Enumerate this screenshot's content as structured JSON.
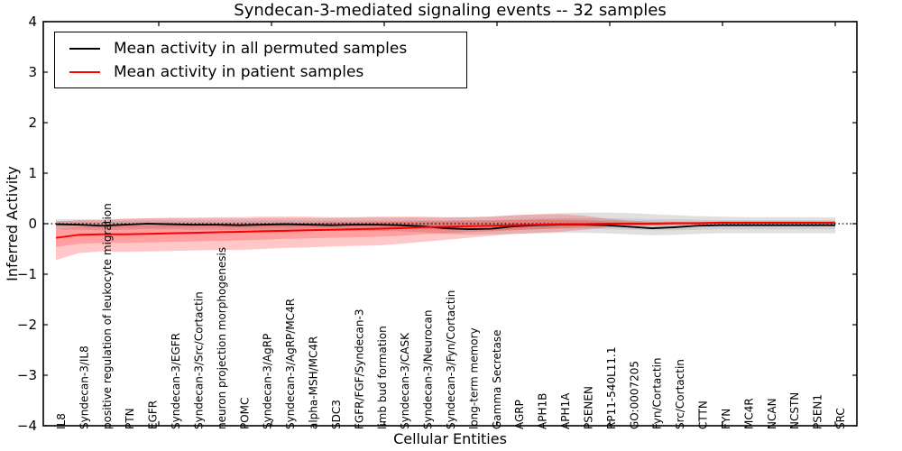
{
  "chart_data": {
    "type": "line",
    "title": "Syndecan-3-mediated signaling events -- 32 samples",
    "xlabel": "Cellular Entities",
    "ylabel": "Inferred Activity",
    "ylim": [
      -4,
      4
    ],
    "yticks": [
      4,
      3,
      2,
      1,
      0,
      -1,
      -2,
      -3,
      -4
    ],
    "zero_reference_line": {
      "y": 0,
      "style": "dotted",
      "color": "#000000"
    },
    "legend_position": "upper left",
    "grid": false,
    "categories": [
      "IL8",
      "Syndecan-3/IL8",
      "positive regulation of leukocyte migration",
      "PTN",
      "EGFR",
      "Syndecan-3/EGFR",
      "Syndecan-3/Src/Cortactin",
      "neuron projection morphogenesis",
      "POMC",
      "Syndecan-3/AgRP",
      "Syndecan-3/AgRP/MC4R",
      "alpha-MSH/MC4R",
      "SDC3",
      "FGFR/FGF/Syndecan-3",
      "limb bud formation",
      "Syndecan-3/CASK",
      "Syndecan-3/Neurocan",
      "Syndecan-3/Fyn/Cortactin",
      "long-term memory",
      "Gamma Secretase",
      "AGRP",
      "APH1B",
      "APH1A",
      "PSENEN",
      "RP11-540L11.1",
      "GO:0007205",
      "Fyn/Cortactin",
      "Src/Cortactin",
      "CTTN",
      "FYN",
      "MC4R",
      "NCAN",
      "NCSTN",
      "PSEN1",
      "SRC"
    ],
    "series": [
      {
        "name": "Mean activity in all permuted samples",
        "color": "#000000",
        "band_fill_outer": "rgba(0,0,0,0.12)",
        "band_fill_inner": "rgba(0,0,0,0.08)",
        "mean": [
          -0.01,
          -0.02,
          -0.04,
          -0.02,
          0.0,
          -0.01,
          -0.02,
          -0.02,
          -0.03,
          -0.02,
          -0.01,
          -0.02,
          -0.03,
          -0.02,
          -0.02,
          -0.03,
          -0.05,
          -0.09,
          -0.11,
          -0.1,
          -0.05,
          -0.03,
          -0.02,
          -0.02,
          -0.03,
          -0.06,
          -0.09,
          -0.07,
          -0.04,
          -0.03,
          -0.03,
          -0.03,
          -0.03,
          -0.03,
          -0.03
        ],
        "band_outer_hi": [
          0.09,
          0.09,
          0.08,
          0.09,
          0.1,
          0.1,
          0.1,
          0.1,
          0.1,
          0.11,
          0.11,
          0.11,
          0.11,
          0.12,
          0.12,
          0.12,
          0.12,
          0.12,
          0.13,
          0.14,
          0.17,
          0.19,
          0.21,
          0.22,
          0.22,
          0.21,
          0.19,
          0.17,
          0.15,
          0.14,
          0.13,
          0.13,
          0.13,
          0.13,
          0.12
        ],
        "band_outer_lo": [
          -0.11,
          -0.12,
          -0.13,
          -0.12,
          -0.11,
          -0.11,
          -0.12,
          -0.12,
          -0.13,
          -0.13,
          -0.13,
          -0.13,
          -0.14,
          -0.14,
          -0.14,
          -0.15,
          -0.17,
          -0.2,
          -0.22,
          -0.21,
          -0.2,
          -0.19,
          -0.18,
          -0.18,
          -0.19,
          -0.21,
          -0.23,
          -0.22,
          -0.2,
          -0.19,
          -0.19,
          -0.19,
          -0.19,
          -0.19,
          -0.19
        ],
        "band_inner_hi": [
          0.05,
          0.05,
          0.04,
          0.05,
          0.05,
          0.05,
          0.05,
          0.05,
          0.05,
          0.06,
          0.06,
          0.06,
          0.06,
          0.06,
          0.06,
          0.06,
          0.06,
          0.06,
          0.07,
          0.07,
          0.09,
          0.1,
          0.11,
          0.11,
          0.11,
          0.1,
          0.09,
          0.09,
          0.08,
          0.07,
          0.07,
          0.07,
          0.07,
          0.07,
          0.07
        ],
        "band_inner_lo": [
          -0.07,
          -0.07,
          -0.08,
          -0.07,
          -0.06,
          -0.07,
          -0.07,
          -0.07,
          -0.08,
          -0.08,
          -0.08,
          -0.08,
          -0.08,
          -0.08,
          -0.08,
          -0.09,
          -0.1,
          -0.12,
          -0.13,
          -0.13,
          -0.12,
          -0.11,
          -0.1,
          -0.1,
          -0.11,
          -0.12,
          -0.13,
          -0.13,
          -0.12,
          -0.11,
          -0.11,
          -0.11,
          -0.11,
          -0.11,
          -0.11
        ]
      },
      {
        "name": "Mean activity in patient samples",
        "color": "#ff0000",
        "band_fill_outer": "rgba(255,0,0,0.22)",
        "band_fill_inner": "rgba(255,0,0,0.20)",
        "mean": [
          -0.28,
          -0.22,
          -0.21,
          -0.21,
          -0.2,
          -0.19,
          -0.18,
          -0.17,
          -0.16,
          -0.15,
          -0.14,
          -0.13,
          -0.12,
          -0.11,
          -0.1,
          -0.09,
          -0.07,
          -0.06,
          -0.05,
          -0.04,
          -0.03,
          -0.02,
          -0.01,
          -0.01,
          0.0,
          0.0,
          0.0,
          0.01,
          0.01,
          0.02,
          0.02,
          0.02,
          0.02,
          0.02,
          0.02
        ],
        "band_outer_hi": [
          0.05,
          0.07,
          0.08,
          0.1,
          0.11,
          0.12,
          0.12,
          0.13,
          0.13,
          0.14,
          0.14,
          0.14,
          0.13,
          0.13,
          0.14,
          0.14,
          0.14,
          0.13,
          0.13,
          0.14,
          0.17,
          0.18,
          0.19,
          0.16,
          0.1,
          0.06,
          0.04,
          0.04,
          0.04,
          0.04,
          0.04,
          0.04,
          0.04,
          0.04,
          0.04
        ],
        "band_outer_lo": [
          -0.72,
          -0.58,
          -0.55,
          -0.56,
          -0.55,
          -0.54,
          -0.53,
          -0.52,
          -0.52,
          -0.5,
          -0.48,
          -0.47,
          -0.45,
          -0.44,
          -0.43,
          -0.4,
          -0.36,
          -0.32,
          -0.28,
          -0.24,
          -0.2,
          -0.18,
          -0.16,
          -0.12,
          -0.08,
          -0.05,
          -0.04,
          -0.03,
          -0.02,
          -0.01,
          -0.01,
          -0.01,
          -0.01,
          -0.01,
          -0.01
        ],
        "band_inner_hi": [
          -0.1,
          -0.06,
          -0.05,
          -0.04,
          -0.03,
          -0.02,
          -0.01,
          0.0,
          0.0,
          0.01,
          0.02,
          0.02,
          0.03,
          0.03,
          0.04,
          0.04,
          0.05,
          0.05,
          0.06,
          0.06,
          0.07,
          0.08,
          0.08,
          0.07,
          0.05,
          0.04,
          0.03,
          0.03,
          0.03,
          0.04,
          0.04,
          0.04,
          0.04,
          0.04,
          0.04
        ],
        "band_inner_lo": [
          -0.46,
          -0.4,
          -0.38,
          -0.38,
          -0.37,
          -0.36,
          -0.35,
          -0.34,
          -0.33,
          -0.32,
          -0.3,
          -0.29,
          -0.28,
          -0.27,
          -0.26,
          -0.24,
          -0.21,
          -0.19,
          -0.17,
          -0.15,
          -0.13,
          -0.11,
          -0.09,
          -0.07,
          -0.05,
          -0.03,
          -0.02,
          -0.01,
          -0.01,
          0.0,
          0.0,
          0.0,
          0.0,
          0.0,
          0.0
        ]
      }
    ]
  }
}
